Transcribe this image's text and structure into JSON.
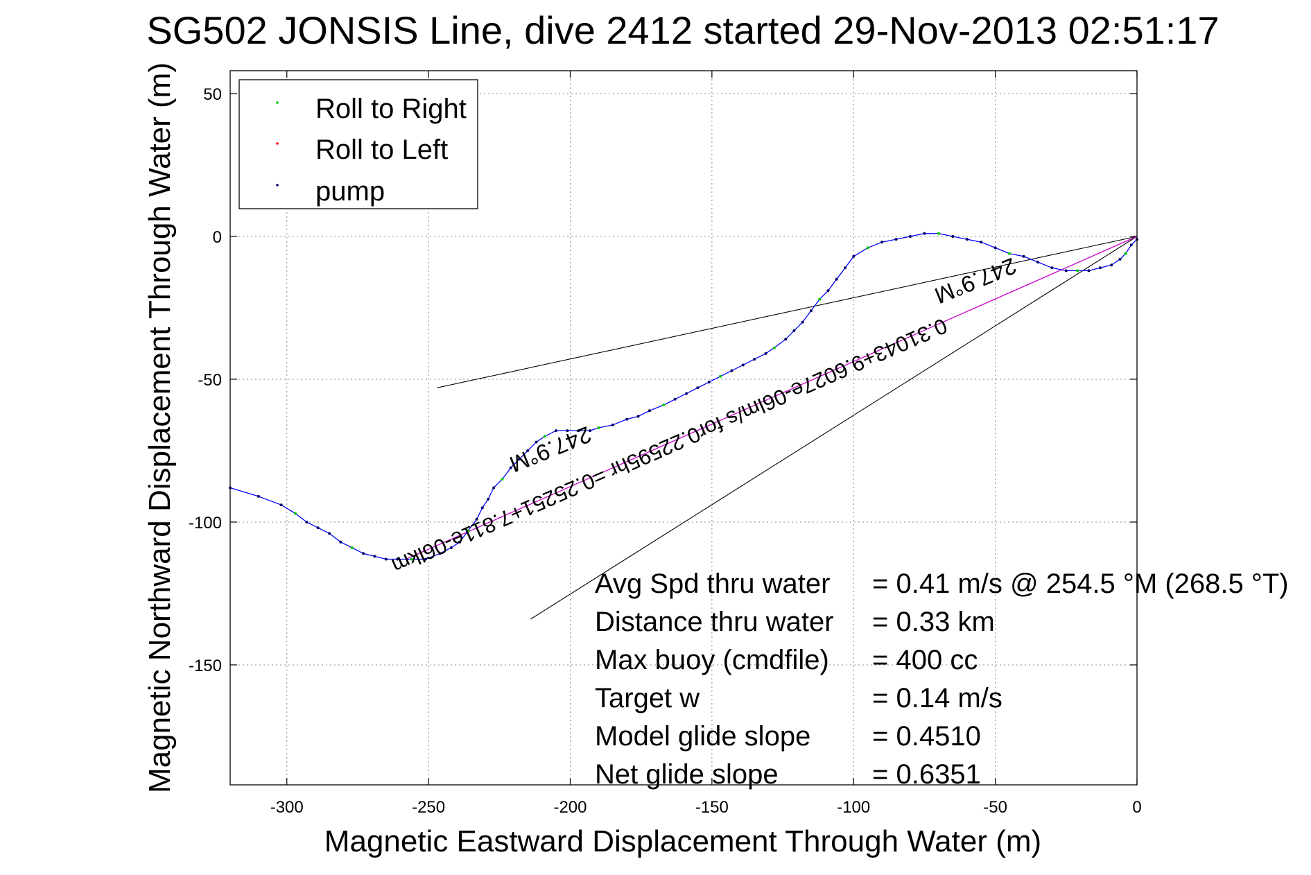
{
  "chart_data": {
    "type": "line",
    "title": "SG502 JONSIS Line, dive 2412 started 29-Nov-2013 02:51:17",
    "xlabel": "Magnetic Eastward Displacement Through Water (m)",
    "ylabel": "Magnetic Northward Displacement Through Water (m)",
    "xlim": [
      -320,
      0
    ],
    "ylim": [
      -192,
      58
    ],
    "xticks": [
      -300,
      -250,
      -200,
      -150,
      -100,
      -50,
      0
    ],
    "yticks": [
      50,
      0,
      -50,
      -100,
      -150
    ],
    "xtick_labels": [
      "-300",
      "-250",
      "-200",
      "-150",
      "-100",
      "-50",
      "0"
    ],
    "ytick_labels": [
      "50",
      "0",
      "-50",
      "-100",
      "-150"
    ],
    "grid": true,
    "legend_position": "top-left",
    "legend": [
      {
        "label": "Roll to Right",
        "color": "#00cc00"
      },
      {
        "label": "Roll to Left",
        "color": "#ff0000"
      },
      {
        "label": "pump",
        "color": "#000066"
      }
    ],
    "colors": {
      "track": "#0000ff",
      "net_line": "#cc00cc",
      "bearing_lines": "#000000",
      "points": "#000066"
    },
    "series": [
      {
        "name": "track",
        "points": [
          [
            0,
            -1
          ],
          [
            -2,
            -3
          ],
          [
            -4,
            -6
          ],
          [
            -6,
            -8
          ],
          [
            -9,
            -10
          ],
          [
            -13,
            -11
          ],
          [
            -17,
            -12
          ],
          [
            -21,
            -12
          ],
          [
            -25,
            -12
          ],
          [
            -30,
            -11
          ],
          [
            -35,
            -9
          ],
          [
            -40,
            -7
          ],
          [
            -45,
            -6
          ],
          [
            -50,
            -4
          ],
          [
            -55,
            -2
          ],
          [
            -60,
            -1
          ],
          [
            -65,
            0
          ],
          [
            -70,
            1
          ],
          [
            -75,
            1
          ],
          [
            -80,
            0
          ],
          [
            -85,
            -1
          ],
          [
            -90,
            -2
          ],
          [
            -95,
            -4
          ],
          [
            -100,
            -7
          ],
          [
            -103,
            -11
          ],
          [
            -106,
            -15
          ],
          [
            -109,
            -19
          ],
          [
            -112,
            -22
          ],
          [
            -115,
            -26
          ],
          [
            -118,
            -30
          ],
          [
            -121,
            -33
          ],
          [
            -124,
            -36
          ],
          [
            -128,
            -39
          ],
          [
            -131,
            -41
          ],
          [
            -135,
            -43
          ],
          [
            -139,
            -45
          ],
          [
            -143,
            -47
          ],
          [
            -147,
            -49
          ],
          [
            -151,
            -51
          ],
          [
            -155,
            -53
          ],
          [
            -159,
            -55
          ],
          [
            -163,
            -57
          ],
          [
            -167,
            -59
          ],
          [
            -172,
            -61
          ],
          [
            -176,
            -63
          ],
          [
            -180,
            -64
          ],
          [
            -185,
            -66
          ],
          [
            -190,
            -67
          ],
          [
            -193,
            -68
          ],
          [
            -197,
            -68
          ],
          [
            -201,
            -68
          ],
          [
            -205,
            -68
          ],
          [
            -209,
            -70
          ],
          [
            -212,
            -72
          ],
          [
            -215,
            -75
          ],
          [
            -218,
            -78
          ],
          [
            -221,
            -81
          ],
          [
            -224,
            -85
          ],
          [
            -227,
            -88
          ],
          [
            -229,
            -92
          ],
          [
            -231,
            -95
          ],
          [
            -233,
            -99
          ],
          [
            -236,
            -103
          ],
          [
            -239,
            -107
          ],
          [
            -242,
            -109
          ],
          [
            -246,
            -111
          ],
          [
            -251,
            -113
          ],
          [
            -256,
            -113
          ],
          [
            -261,
            -113
          ],
          [
            -265,
            -113
          ],
          [
            -269,
            -112
          ],
          [
            -273,
            -111
          ],
          [
            -277,
            -109
          ],
          [
            -281,
            -107
          ],
          [
            -285,
            -104
          ],
          [
            -289,
            -102
          ],
          [
            -293,
            -100
          ],
          [
            -297,
            -97
          ],
          [
            -302,
            -94
          ],
          [
            -310,
            -91
          ],
          [
            -320,
            -88
          ]
        ]
      },
      {
        "name": "net",
        "points": [
          [
            0,
            0
          ],
          [
            -258,
            -113
          ]
        ]
      },
      {
        "name": "bearing_1",
        "points": [
          [
            0,
            0
          ],
          [
            -247,
            -53
          ]
        ]
      },
      {
        "name": "bearing_2",
        "points": [
          [
            0,
            0
          ],
          [
            -214,
            -134
          ]
        ]
      }
    ],
    "annotations": [
      {
        "text": "0.31043+9.6027e-06lm/s for0.22595hr =0.25251+7.811e-06lkm",
        "x": -166,
        "y": -71,
        "rotation": 156.3
      },
      {
        "text": "247.9°M",
        "x": -58,
        "y": -13,
        "rotation": 157.9
      },
      {
        "text": "247.9°M",
        "x": -208,
        "y": -72,
        "rotation": 157.9
      }
    ],
    "stats": [
      {
        "label": "Avg Spd thru water",
        "value": "=  0.41 m/s @ 254.5 °M (268.5 °T)"
      },
      {
        "label": "Distance thru water",
        "value": "=  0.33 km"
      },
      {
        "label": "Max buoy (cmdfile)",
        "value": "= 400 cc"
      },
      {
        "label": "Target w",
        "value": "= 0.14 m/s"
      },
      {
        "label": "Model glide slope",
        "value": "= 0.4510"
      },
      {
        "label": "Net glide slope",
        "value": "= 0.6351"
      }
    ]
  }
}
